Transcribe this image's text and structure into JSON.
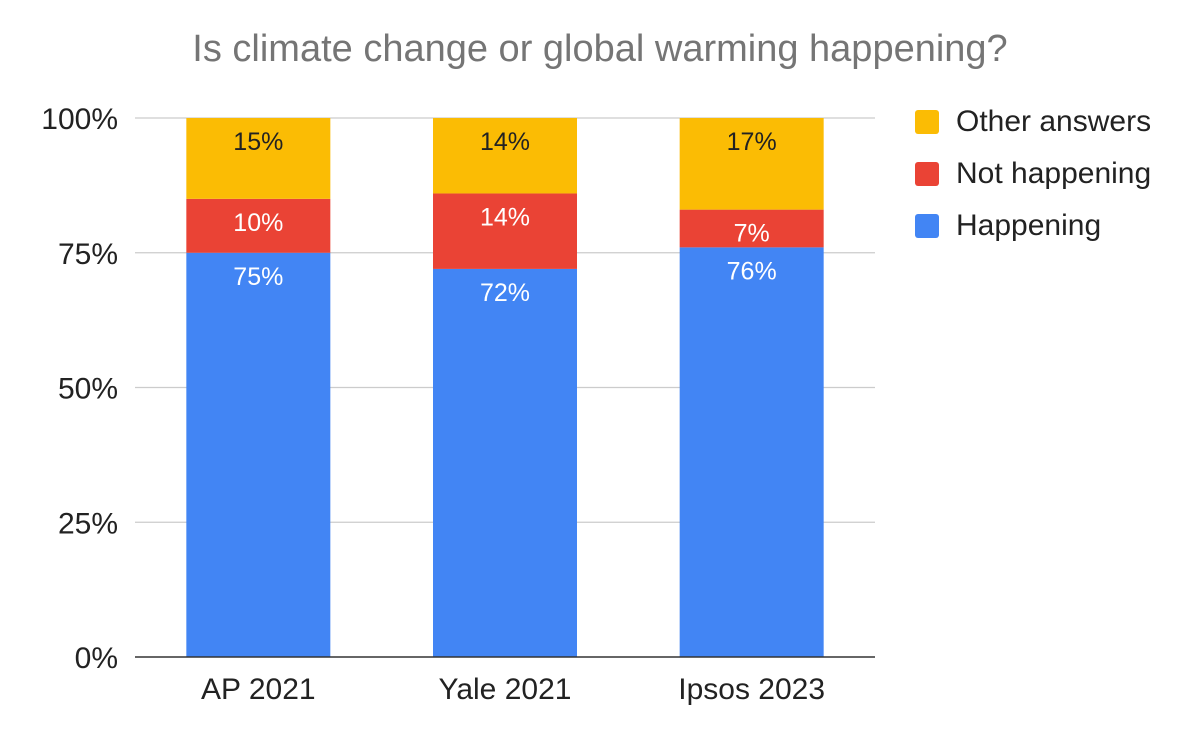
{
  "chart_data": {
    "type": "bar",
    "stacked": true,
    "title": "Is climate change or global warming happening?",
    "categories": [
      "AP 2021",
      "Yale 2021",
      "Ipsos 2023"
    ],
    "series": [
      {
        "name": "Happening",
        "values": [
          75,
          72,
          76
        ],
        "labels": [
          "75%",
          "72%",
          "76%"
        ],
        "color": "#4285F4",
        "label_color": "#ffffff"
      },
      {
        "name": "Not happening",
        "values": [
          10,
          14,
          7
        ],
        "labels": [
          "10%",
          "14%",
          "7%"
        ],
        "color": "#EA4335",
        "label_color": "#ffffff"
      },
      {
        "name": "Other answers",
        "values": [
          15,
          14,
          17
        ],
        "labels": [
          "15%",
          "14%",
          "17%"
        ],
        "color": "#FBBC04",
        "label_color": "#222222"
      }
    ],
    "ylim": [
      0,
      100
    ],
    "yticks": [
      0,
      25,
      50,
      75,
      100
    ],
    "ytick_labels": [
      "0%",
      "25%",
      "50%",
      "75%",
      "100%"
    ],
    "grid": true,
    "legend_position": "right"
  }
}
